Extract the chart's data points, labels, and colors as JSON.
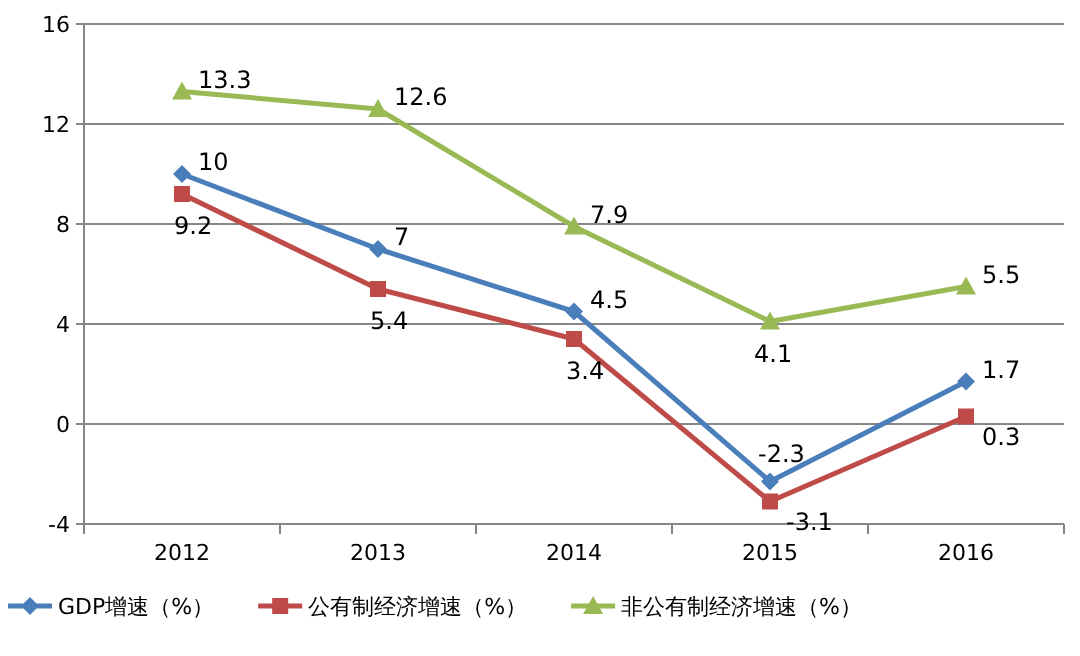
{
  "chart_data": {
    "type": "line",
    "categories": [
      "2012",
      "2013",
      "2014",
      "2015",
      "2016"
    ],
    "series": [
      {
        "name": "GDP增速（%）",
        "color": "#4a7ebb",
        "marker": "diamond",
        "values": [
          10,
          7,
          4.5,
          -2.3,
          1.7
        ]
      },
      {
        "name": "公有制经济增速（%）",
        "color": "#be4b48",
        "marker": "square",
        "values": [
          9.2,
          5.4,
          3.4,
          -3.1,
          0.3
        ]
      },
      {
        "name": "非公有制经济增速（%）",
        "color": "#98b954",
        "marker": "triangle",
        "values": [
          13.3,
          12.6,
          7.9,
          4.1,
          5.5
        ]
      }
    ],
    "ylim": [
      -4,
      16
    ],
    "yticks": [
      -4,
      0,
      4,
      8,
      12,
      16
    ],
    "grid": "y",
    "legend": "bottom",
    "data_labels": true
  }
}
